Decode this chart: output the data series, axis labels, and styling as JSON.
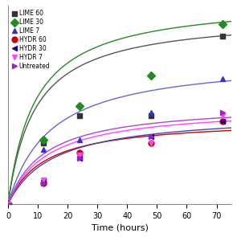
{
  "xlabel": "Time (hours)",
  "xlim": [
    0,
    75
  ],
  "ylim": [
    0,
    65
  ],
  "xticks": [
    0,
    10,
    20,
    30,
    40,
    50,
    60,
    70
  ],
  "yticks": [],
  "series": [
    {
      "name": "LIME 60",
      "color": "#333333",
      "line_color": "#555555",
      "marker": "s",
      "data_x": [
        0,
        12,
        24,
        48,
        72
      ],
      "data_y": [
        0,
        20,
        29,
        29,
        55
      ],
      "Vmax": 62,
      "Km": 9
    },
    {
      "name": "LIME 30",
      "color": "#228B22",
      "line_color": "#228B22",
      "marker": "D",
      "data_x": [
        0,
        12,
        24,
        48,
        72
      ],
      "data_y": [
        0,
        21,
        32,
        42,
        59
      ],
      "Vmax": 67,
      "Km": 9
    },
    {
      "name": "LIME 7",
      "color": "#3333CC",
      "line_color": "#6666CC",
      "marker": "^",
      "data_x": [
        0,
        12,
        24,
        48,
        72
      ],
      "data_y": [
        0,
        18,
        21,
        30,
        41
      ],
      "Vmax": 48,
      "Km": 14
    },
    {
      "name": "HYDR 60",
      "color": "#CC0000",
      "line_color": "#CC0000",
      "marker": "o",
      "data_x": [
        0,
        12,
        24,
        48,
        72
      ],
      "data_y": [
        0,
        7,
        17,
        20,
        27
      ],
      "Vmax": 28,
      "Km": 12
    },
    {
      "name": "HYDR 30",
      "color": "#220088",
      "line_color": "#4444AA",
      "marker": "<",
      "data_x": [
        0,
        12,
        24,
        48,
        72
      ],
      "data_y": [
        0,
        8,
        15,
        22,
        27
      ],
      "Vmax": 30,
      "Km": 15
    },
    {
      "name": "HYDR 7",
      "color": "#FF44FF",
      "line_color": "#FF44FF",
      "marker": "v",
      "data_x": [
        0,
        12,
        24,
        48,
        72
      ],
      "data_y": [
        0,
        8,
        16,
        20,
        29
      ],
      "Vmax": 32,
      "Km": 13
    },
    {
      "name": "Untreated",
      "color": "#9922CC",
      "line_color": "#AA44DD",
      "marker": ">",
      "data_x": [
        0,
        12,
        24,
        48,
        72
      ],
      "data_y": [
        0,
        7,
        15,
        22,
        30
      ],
      "Vmax": 33,
      "Km": 12
    }
  ]
}
